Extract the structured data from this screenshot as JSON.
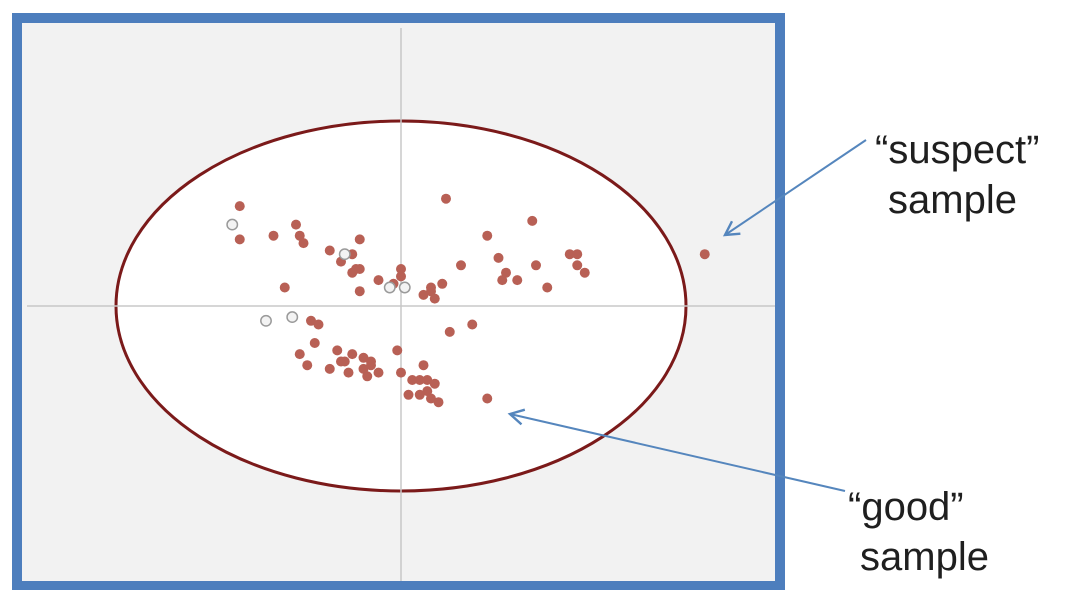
{
  "chart_data": {
    "type": "scatter",
    "title": "",
    "xlabel": "",
    "ylabel": "",
    "grid": false,
    "xlim": [
      -10,
      10
    ],
    "ylim": [
      -8,
      8
    ],
    "confidence_ellipse": {
      "center": [
        0,
        0
      ],
      "rx": 7.6,
      "ry": 5.0
    },
    "series": [
      {
        "style": "filled",
        "points": [
          [
            -4.3,
            2.7
          ],
          [
            -4.3,
            1.8
          ],
          [
            -3.4,
            1.9
          ],
          [
            -2.8,
            2.2
          ],
          [
            -2.7,
            1.9
          ],
          [
            -2.6,
            1.7
          ],
          [
            -1.9,
            1.5
          ],
          [
            -1.6,
            1.2
          ],
          [
            -1.3,
            1.4
          ],
          [
            -1.2,
            1.0
          ],
          [
            -1.1,
            1.0
          ],
          [
            -1.1,
            1.8
          ],
          [
            -1.3,
            0.9
          ],
          [
            -1.1,
            0.4
          ],
          [
            -0.6,
            0.7
          ],
          [
            -0.2,
            0.6
          ],
          [
            0.0,
            1.0
          ],
          [
            0.0,
            0.8
          ],
          [
            0.6,
            0.3
          ],
          [
            0.8,
            0.4
          ],
          [
            0.9,
            0.2
          ],
          [
            0.8,
            0.5
          ],
          [
            1.1,
            0.6
          ],
          [
            1.2,
            2.9
          ],
          [
            1.6,
            1.1
          ],
          [
            2.3,
            1.9
          ],
          [
            2.6,
            1.3
          ],
          [
            2.8,
            0.9
          ],
          [
            2.7,
            0.7
          ],
          [
            3.1,
            0.7
          ],
          [
            3.5,
            2.3
          ],
          [
            3.6,
            1.1
          ],
          [
            3.9,
            0.5
          ],
          [
            4.5,
            1.4
          ],
          [
            4.7,
            1.4
          ],
          [
            4.7,
            1.1
          ],
          [
            4.9,
            0.9
          ],
          [
            8.1,
            1.4
          ],
          [
            -3.1,
            0.5
          ],
          [
            -2.4,
            -0.4
          ],
          [
            -2.2,
            -0.5
          ],
          [
            -2.3,
            -1.0
          ],
          [
            -2.7,
            -1.3
          ],
          [
            -1.7,
            -1.2
          ],
          [
            -1.5,
            -1.5
          ],
          [
            -1.3,
            -1.3
          ],
          [
            -1.0,
            -1.4
          ],
          [
            -1.6,
            -1.5
          ],
          [
            -2.5,
            -1.6
          ],
          [
            -1.9,
            -1.7
          ],
          [
            -1.4,
            -1.8
          ],
          [
            -1.0,
            -1.7
          ],
          [
            -0.8,
            -1.6
          ],
          [
            -0.9,
            -1.9
          ],
          [
            -0.6,
            -1.8
          ],
          [
            -0.8,
            -1.5
          ],
          [
            -0.1,
            -1.2
          ],
          [
            0.0,
            -1.8
          ],
          [
            0.3,
            -2.0
          ],
          [
            0.5,
            -2.0
          ],
          [
            0.7,
            -2.0
          ],
          [
            0.9,
            -2.1
          ],
          [
            0.6,
            -1.6
          ],
          [
            0.2,
            -2.4
          ],
          [
            0.5,
            -2.4
          ],
          [
            0.7,
            -2.3
          ],
          [
            0.8,
            -2.5
          ],
          [
            1.0,
            -2.6
          ],
          [
            2.3,
            -2.5
          ],
          [
            1.3,
            -0.7
          ],
          [
            1.9,
            -0.5
          ]
        ]
      },
      {
        "style": "hollow",
        "points": [
          [
            -4.5,
            2.2
          ],
          [
            -1.5,
            1.4
          ],
          [
            -3.6,
            -0.4
          ],
          [
            -2.9,
            -0.3
          ],
          [
            -0.3,
            0.5
          ],
          [
            0.1,
            0.5
          ]
        ]
      }
    ],
    "annotations": [
      {
        "lines": [
          "“suspect”",
          "sample"
        ],
        "target": [
          8.1,
          1.4
        ]
      },
      {
        "lines": [
          "“good”",
          "sample"
        ],
        "target": [
          2.3,
          -2.5
        ]
      }
    ]
  },
  "colors": {
    "frame": "#4d7ebd",
    "plot_background": "#f2f2f2",
    "ellipse_fill": "#ffffff",
    "ellipse_stroke": "#7b1a1a",
    "axis_line": "#c8c8c8",
    "point_fill": "#b86055",
    "hollow_point_fill": "#f3f3f3",
    "hollow_point_stroke": "#9a9a9a",
    "arrow": "#5586bd",
    "annotation_text": "#1f1f1f"
  }
}
